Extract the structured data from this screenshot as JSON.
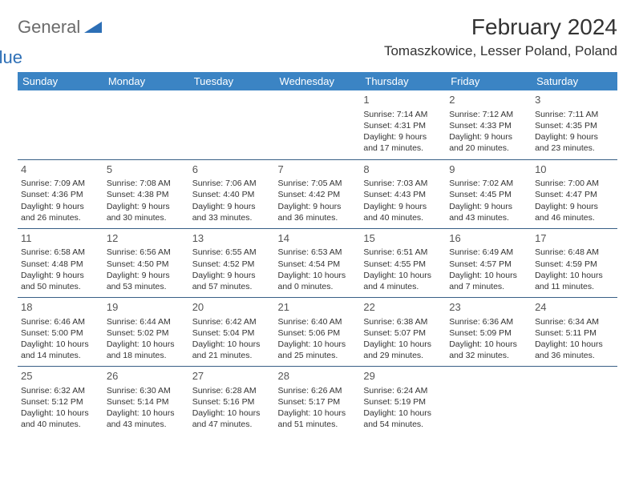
{
  "logo": {
    "general": "General",
    "blue": "Blue"
  },
  "title": "February 2024",
  "location": "Tomaszkowice, Lesser Poland, Poland",
  "colors": {
    "header_bg": "#3b84c4",
    "header_text": "#ffffff",
    "cell_text": "#333333",
    "sep_line": "#385f86",
    "logo_gray": "#6b6b6b",
    "logo_blue": "#2d6fb6"
  },
  "dayHeaders": [
    "Sunday",
    "Monday",
    "Tuesday",
    "Wednesday",
    "Thursday",
    "Friday",
    "Saturday"
  ],
  "weeks": [
    [
      null,
      null,
      null,
      null,
      {
        "n": "1",
        "sr": "Sunrise: 7:14 AM",
        "ss": "Sunset: 4:31 PM",
        "d1": "Daylight: 9 hours",
        "d2": "and 17 minutes."
      },
      {
        "n": "2",
        "sr": "Sunrise: 7:12 AM",
        "ss": "Sunset: 4:33 PM",
        "d1": "Daylight: 9 hours",
        "d2": "and 20 minutes."
      },
      {
        "n": "3",
        "sr": "Sunrise: 7:11 AM",
        "ss": "Sunset: 4:35 PM",
        "d1": "Daylight: 9 hours",
        "d2": "and 23 minutes."
      }
    ],
    [
      {
        "n": "4",
        "sr": "Sunrise: 7:09 AM",
        "ss": "Sunset: 4:36 PM",
        "d1": "Daylight: 9 hours",
        "d2": "and 26 minutes."
      },
      {
        "n": "5",
        "sr": "Sunrise: 7:08 AM",
        "ss": "Sunset: 4:38 PM",
        "d1": "Daylight: 9 hours",
        "d2": "and 30 minutes."
      },
      {
        "n": "6",
        "sr": "Sunrise: 7:06 AM",
        "ss": "Sunset: 4:40 PM",
        "d1": "Daylight: 9 hours",
        "d2": "and 33 minutes."
      },
      {
        "n": "7",
        "sr": "Sunrise: 7:05 AM",
        "ss": "Sunset: 4:42 PM",
        "d1": "Daylight: 9 hours",
        "d2": "and 36 minutes."
      },
      {
        "n": "8",
        "sr": "Sunrise: 7:03 AM",
        "ss": "Sunset: 4:43 PM",
        "d1": "Daylight: 9 hours",
        "d2": "and 40 minutes."
      },
      {
        "n": "9",
        "sr": "Sunrise: 7:02 AM",
        "ss": "Sunset: 4:45 PM",
        "d1": "Daylight: 9 hours",
        "d2": "and 43 minutes."
      },
      {
        "n": "10",
        "sr": "Sunrise: 7:00 AM",
        "ss": "Sunset: 4:47 PM",
        "d1": "Daylight: 9 hours",
        "d2": "and 46 minutes."
      }
    ],
    [
      {
        "n": "11",
        "sr": "Sunrise: 6:58 AM",
        "ss": "Sunset: 4:48 PM",
        "d1": "Daylight: 9 hours",
        "d2": "and 50 minutes."
      },
      {
        "n": "12",
        "sr": "Sunrise: 6:56 AM",
        "ss": "Sunset: 4:50 PM",
        "d1": "Daylight: 9 hours",
        "d2": "and 53 minutes."
      },
      {
        "n": "13",
        "sr": "Sunrise: 6:55 AM",
        "ss": "Sunset: 4:52 PM",
        "d1": "Daylight: 9 hours",
        "d2": "and 57 minutes."
      },
      {
        "n": "14",
        "sr": "Sunrise: 6:53 AM",
        "ss": "Sunset: 4:54 PM",
        "d1": "Daylight: 10 hours",
        "d2": "and 0 minutes."
      },
      {
        "n": "15",
        "sr": "Sunrise: 6:51 AM",
        "ss": "Sunset: 4:55 PM",
        "d1": "Daylight: 10 hours",
        "d2": "and 4 minutes."
      },
      {
        "n": "16",
        "sr": "Sunrise: 6:49 AM",
        "ss": "Sunset: 4:57 PM",
        "d1": "Daylight: 10 hours",
        "d2": "and 7 minutes."
      },
      {
        "n": "17",
        "sr": "Sunrise: 6:48 AM",
        "ss": "Sunset: 4:59 PM",
        "d1": "Daylight: 10 hours",
        "d2": "and 11 minutes."
      }
    ],
    [
      {
        "n": "18",
        "sr": "Sunrise: 6:46 AM",
        "ss": "Sunset: 5:00 PM",
        "d1": "Daylight: 10 hours",
        "d2": "and 14 minutes."
      },
      {
        "n": "19",
        "sr": "Sunrise: 6:44 AM",
        "ss": "Sunset: 5:02 PM",
        "d1": "Daylight: 10 hours",
        "d2": "and 18 minutes."
      },
      {
        "n": "20",
        "sr": "Sunrise: 6:42 AM",
        "ss": "Sunset: 5:04 PM",
        "d1": "Daylight: 10 hours",
        "d2": "and 21 minutes."
      },
      {
        "n": "21",
        "sr": "Sunrise: 6:40 AM",
        "ss": "Sunset: 5:06 PM",
        "d1": "Daylight: 10 hours",
        "d2": "and 25 minutes."
      },
      {
        "n": "22",
        "sr": "Sunrise: 6:38 AM",
        "ss": "Sunset: 5:07 PM",
        "d1": "Daylight: 10 hours",
        "d2": "and 29 minutes."
      },
      {
        "n": "23",
        "sr": "Sunrise: 6:36 AM",
        "ss": "Sunset: 5:09 PM",
        "d1": "Daylight: 10 hours",
        "d2": "and 32 minutes."
      },
      {
        "n": "24",
        "sr": "Sunrise: 6:34 AM",
        "ss": "Sunset: 5:11 PM",
        "d1": "Daylight: 10 hours",
        "d2": "and 36 minutes."
      }
    ],
    [
      {
        "n": "25",
        "sr": "Sunrise: 6:32 AM",
        "ss": "Sunset: 5:12 PM",
        "d1": "Daylight: 10 hours",
        "d2": "and 40 minutes."
      },
      {
        "n": "26",
        "sr": "Sunrise: 6:30 AM",
        "ss": "Sunset: 5:14 PM",
        "d1": "Daylight: 10 hours",
        "d2": "and 43 minutes."
      },
      {
        "n": "27",
        "sr": "Sunrise: 6:28 AM",
        "ss": "Sunset: 5:16 PM",
        "d1": "Daylight: 10 hours",
        "d2": "and 47 minutes."
      },
      {
        "n": "28",
        "sr": "Sunrise: 6:26 AM",
        "ss": "Sunset: 5:17 PM",
        "d1": "Daylight: 10 hours",
        "d2": "and 51 minutes."
      },
      {
        "n": "29",
        "sr": "Sunrise: 6:24 AM",
        "ss": "Sunset: 5:19 PM",
        "d1": "Daylight: 10 hours",
        "d2": "and 54 minutes."
      },
      null,
      null
    ]
  ]
}
